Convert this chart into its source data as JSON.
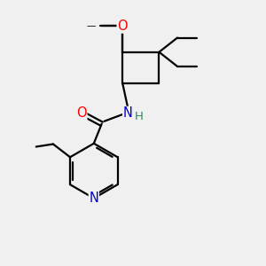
{
  "bg_color": "#f0f0f0",
  "bond_color": "#000000",
  "bond_width": 1.6,
  "atom_colors": {
    "O": "#ff0000",
    "N": "#0000cc",
    "H": "#2e8b57",
    "C": "#000000"
  },
  "font_size": 9.5,
  "figsize": [
    3.0,
    3.0
  ],
  "dpi": 100
}
